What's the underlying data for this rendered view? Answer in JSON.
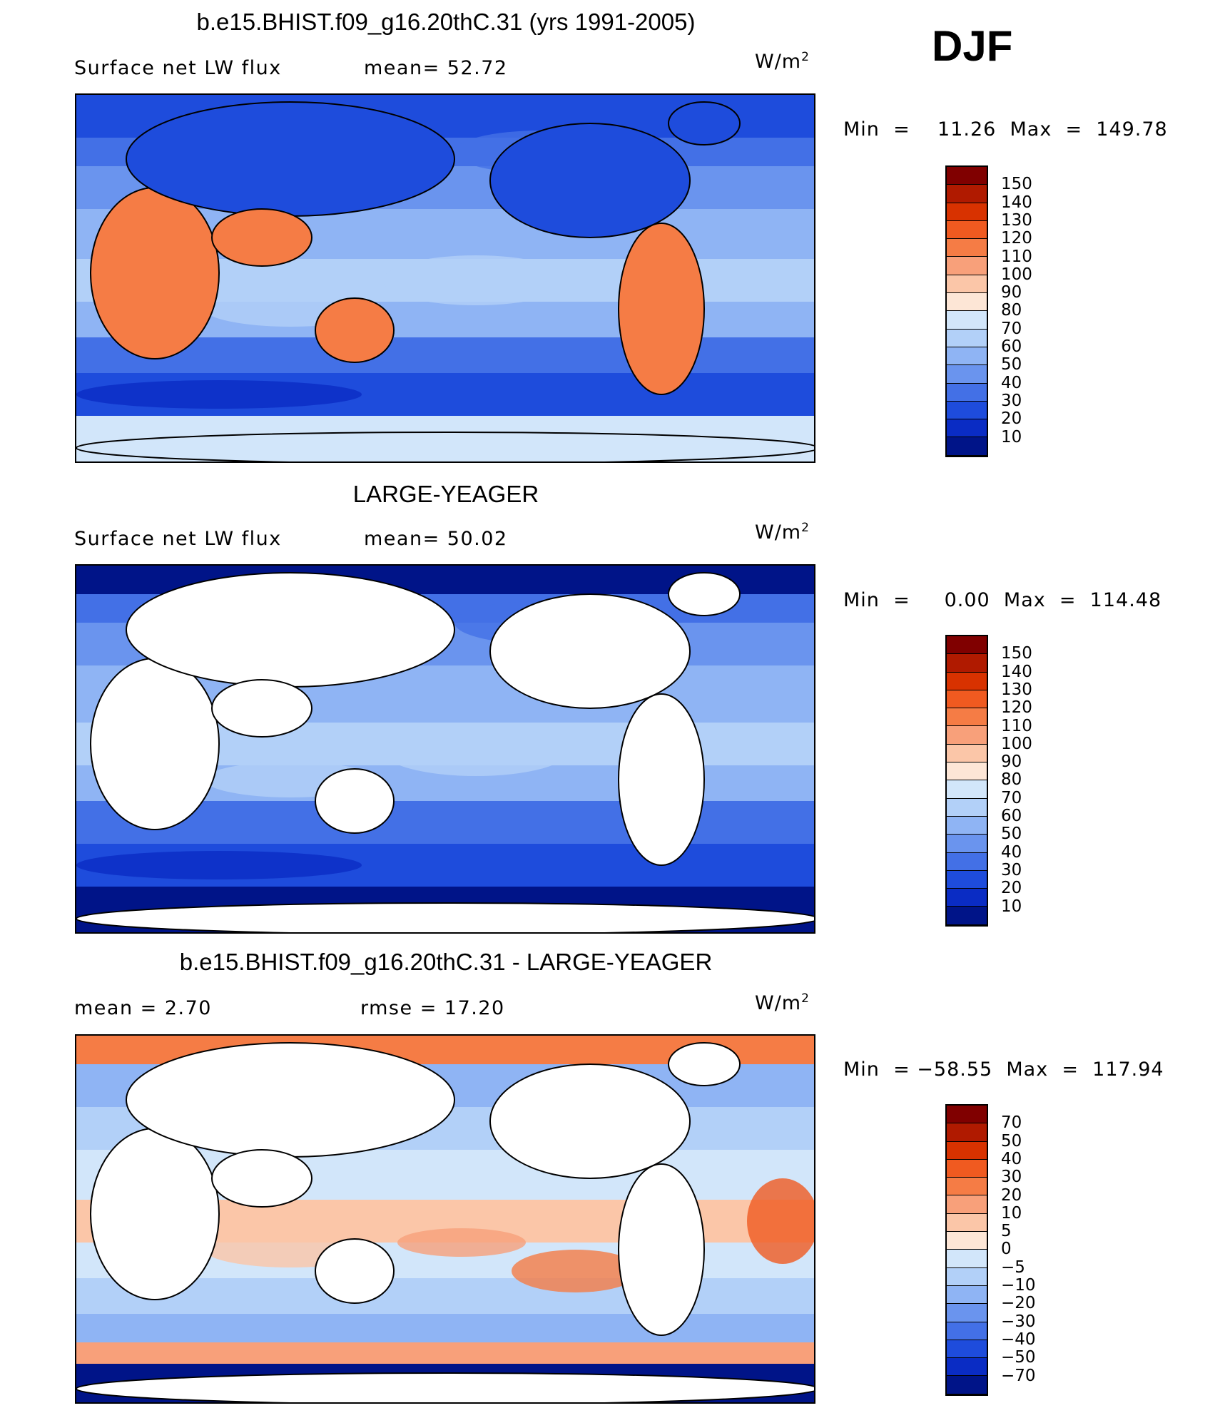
{
  "season": "DJF",
  "panels": [
    {
      "title": "b.e15.BHIST.f09_g16.20thC.31 (yrs 1991-2005)",
      "left_text": "Surface net LW flux",
      "middle_text": "mean=   52.72",
      "units": "W/m",
      "units_exp": "2",
      "minmax": "Min  =    11.26  Max  =  149.78",
      "variant": "model"
    },
    {
      "title": "LARGE-YEAGER",
      "left_text": "Surface net LW flux",
      "middle_text": "mean=   50.02",
      "units": "W/m",
      "units_exp": "2",
      "minmax": "Min  =     0.00  Max  =  114.48",
      "variant": "obs"
    },
    {
      "title": "b.e15.BHIST.f09_g16.20thC.31 - LARGE-YEAGER",
      "left_text": "mean  =     2.70",
      "middle_text": "rmse  =    17.20",
      "units": "W/m",
      "units_exp": "2",
      "minmax": "Min  = −58.55  Max  =  117.94",
      "variant": "diff"
    }
  ],
  "colorbars": [
    {
      "labels": [
        "150",
        "140",
        "130",
        "120",
        "110",
        "100",
        "90",
        "80",
        "70",
        "60",
        "50",
        "40",
        "30",
        "20",
        "10"
      ],
      "colors": [
        "#800000",
        "#b01a00",
        "#d83200",
        "#f05a20",
        "#f57c45",
        "#f8a07a",
        "#fbc6a8",
        "#fde6d6",
        "#d2e6fa",
        "#b2d0f8",
        "#8fb4f4",
        "#6a94ee",
        "#4370e6",
        "#1e4cdc",
        "#0a2cc4",
        "#001488"
      ]
    },
    {
      "labels": [
        "150",
        "140",
        "130",
        "120",
        "110",
        "100",
        "90",
        "80",
        "70",
        "60",
        "50",
        "40",
        "30",
        "20",
        "10"
      ],
      "colors": [
        "#800000",
        "#b01a00",
        "#d83200",
        "#f05a20",
        "#f57c45",
        "#f8a07a",
        "#fbc6a8",
        "#fde6d6",
        "#d2e6fa",
        "#b2d0f8",
        "#8fb4f4",
        "#6a94ee",
        "#4370e6",
        "#1e4cdc",
        "#0a2cc4",
        "#001488"
      ]
    },
    {
      "labels": [
        "70",
        "50",
        "40",
        "30",
        "20",
        "10",
        "5",
        "0",
        "−5",
        "−10",
        "−20",
        "−30",
        "−40",
        "−50",
        "−70"
      ],
      "colors": [
        "#800000",
        "#b01a00",
        "#d83200",
        "#f05a20",
        "#f57c45",
        "#f8a07a",
        "#fbc6a8",
        "#fde6d6",
        "#d2e6fa",
        "#b2d0f8",
        "#8fb4f4",
        "#6a94ee",
        "#4370e6",
        "#1e4cdc",
        "#0a2cc4",
        "#001488"
      ]
    }
  ]
}
